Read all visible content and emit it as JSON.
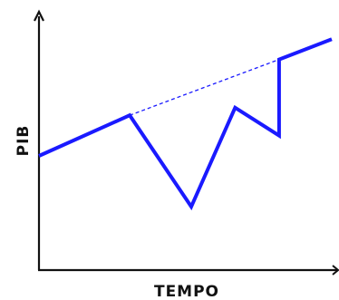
{
  "chart_data": {
    "type": "line",
    "xlabel": "TEMPO",
    "ylabel": "PIB",
    "xlim": [
      0,
      100
    ],
    "ylim": [
      0,
      100
    ],
    "grid": false,
    "series": [
      {
        "style": "solid",
        "color": "#1a1aff",
        "x": [
          0,
          31,
          52,
          67,
          82,
          82,
          100
        ],
        "y": [
          45,
          61,
          25,
          64,
          53,
          83,
          91
        ]
      },
      {
        "style": "dashed",
        "color": "#1a1aff",
        "x": [
          31,
          82
        ],
        "y": [
          61,
          83
        ]
      }
    ]
  }
}
